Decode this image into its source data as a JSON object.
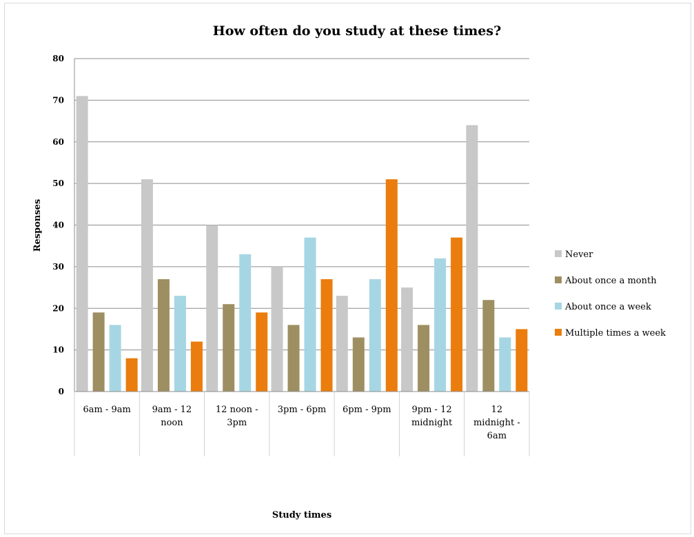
{
  "chart_data": {
    "type": "bar",
    "title": "How often do you study at these times?",
    "xlabel": "Study times",
    "ylabel": "Responses",
    "ylim": [
      0,
      80
    ],
    "yticks": [
      0,
      10,
      20,
      30,
      40,
      50,
      60,
      70,
      80
    ],
    "grid": true,
    "legend_position": "right",
    "categories": [
      [
        "6am - 9am"
      ],
      [
        "9am - 12",
        "noon"
      ],
      [
        "12 noon -",
        "3pm"
      ],
      [
        "3pm - 6pm"
      ],
      [
        "6pm - 9pm"
      ],
      [
        "9pm - 12",
        "midnight"
      ],
      [
        "12",
        "midnight -",
        "6am"
      ]
    ],
    "series": [
      {
        "name": "Never",
        "color": "#c8c8c8",
        "values": [
          71,
          51,
          40,
          30,
          23,
          25,
          64
        ]
      },
      {
        "name": "About once a month",
        "color": "#9e8f62",
        "values": [
          19,
          27,
          21,
          16,
          13,
          16,
          22
        ]
      },
      {
        "name": "About once a week",
        "color": "#a6d6e3",
        "values": [
          16,
          23,
          33,
          37,
          27,
          32,
          13
        ]
      },
      {
        "name": "Multiple times a week",
        "color": "#ea7d0d",
        "values": [
          8,
          12,
          19,
          27,
          51,
          37,
          15
        ]
      }
    ]
  }
}
